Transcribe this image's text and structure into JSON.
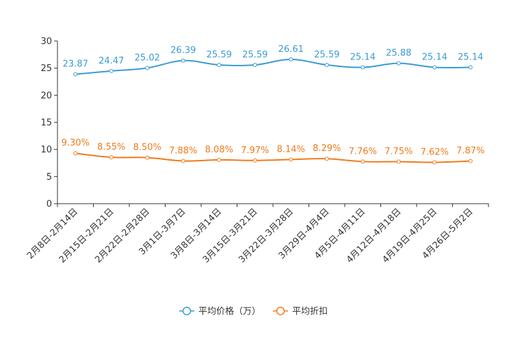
{
  "chart_data": {
    "type": "line",
    "title": "",
    "xlabel": "",
    "ylabel": "",
    "ylim": [
      0,
      30
    ],
    "yticks": [
      0,
      5,
      10,
      15,
      20,
      25,
      30
    ],
    "grid": false,
    "legend": "bottom",
    "categories": [
      "2月8日-2月14日",
      "2月15日-2月21日",
      "2月22日-2月28日",
      "3月1日-3月7日",
      "3月8日-3月14日",
      "3月15日-3月21日",
      "3月22日-3月28日",
      "3月29日-4月4日",
      "4月5日-4月11日",
      "4月12日-4月18日",
      "4月19日-4月25日",
      "4月26日-5月2日"
    ],
    "series": [
      {
        "name": "平均价格（万）",
        "color": "#3a9bd0",
        "values": [
          23.87,
          24.47,
          25.02,
          26.39,
          25.59,
          25.59,
          26.61,
          25.59,
          25.14,
          25.88,
          25.14,
          25.14
        ],
        "labels": [
          "23.87",
          "24.47",
          "25.02",
          "26.39",
          "25.59",
          "25.59",
          "26.61",
          "25.59",
          "25.14",
          "25.88",
          "25.14",
          "25.14"
        ]
      },
      {
        "name": "平均折扣",
        "color": "#f07a1a",
        "values": [
          9.3,
          8.55,
          8.5,
          7.88,
          8.08,
          7.97,
          8.14,
          8.29,
          7.76,
          7.75,
          7.62,
          7.87
        ],
        "labels": [
          "9.30%",
          "8.55%",
          "8.50%",
          "7.88%",
          "8.08%",
          "7.97%",
          "8.14%",
          "8.29%",
          "7.76%",
          "7.75%",
          "7.62%",
          "7.87%"
        ]
      }
    ]
  }
}
